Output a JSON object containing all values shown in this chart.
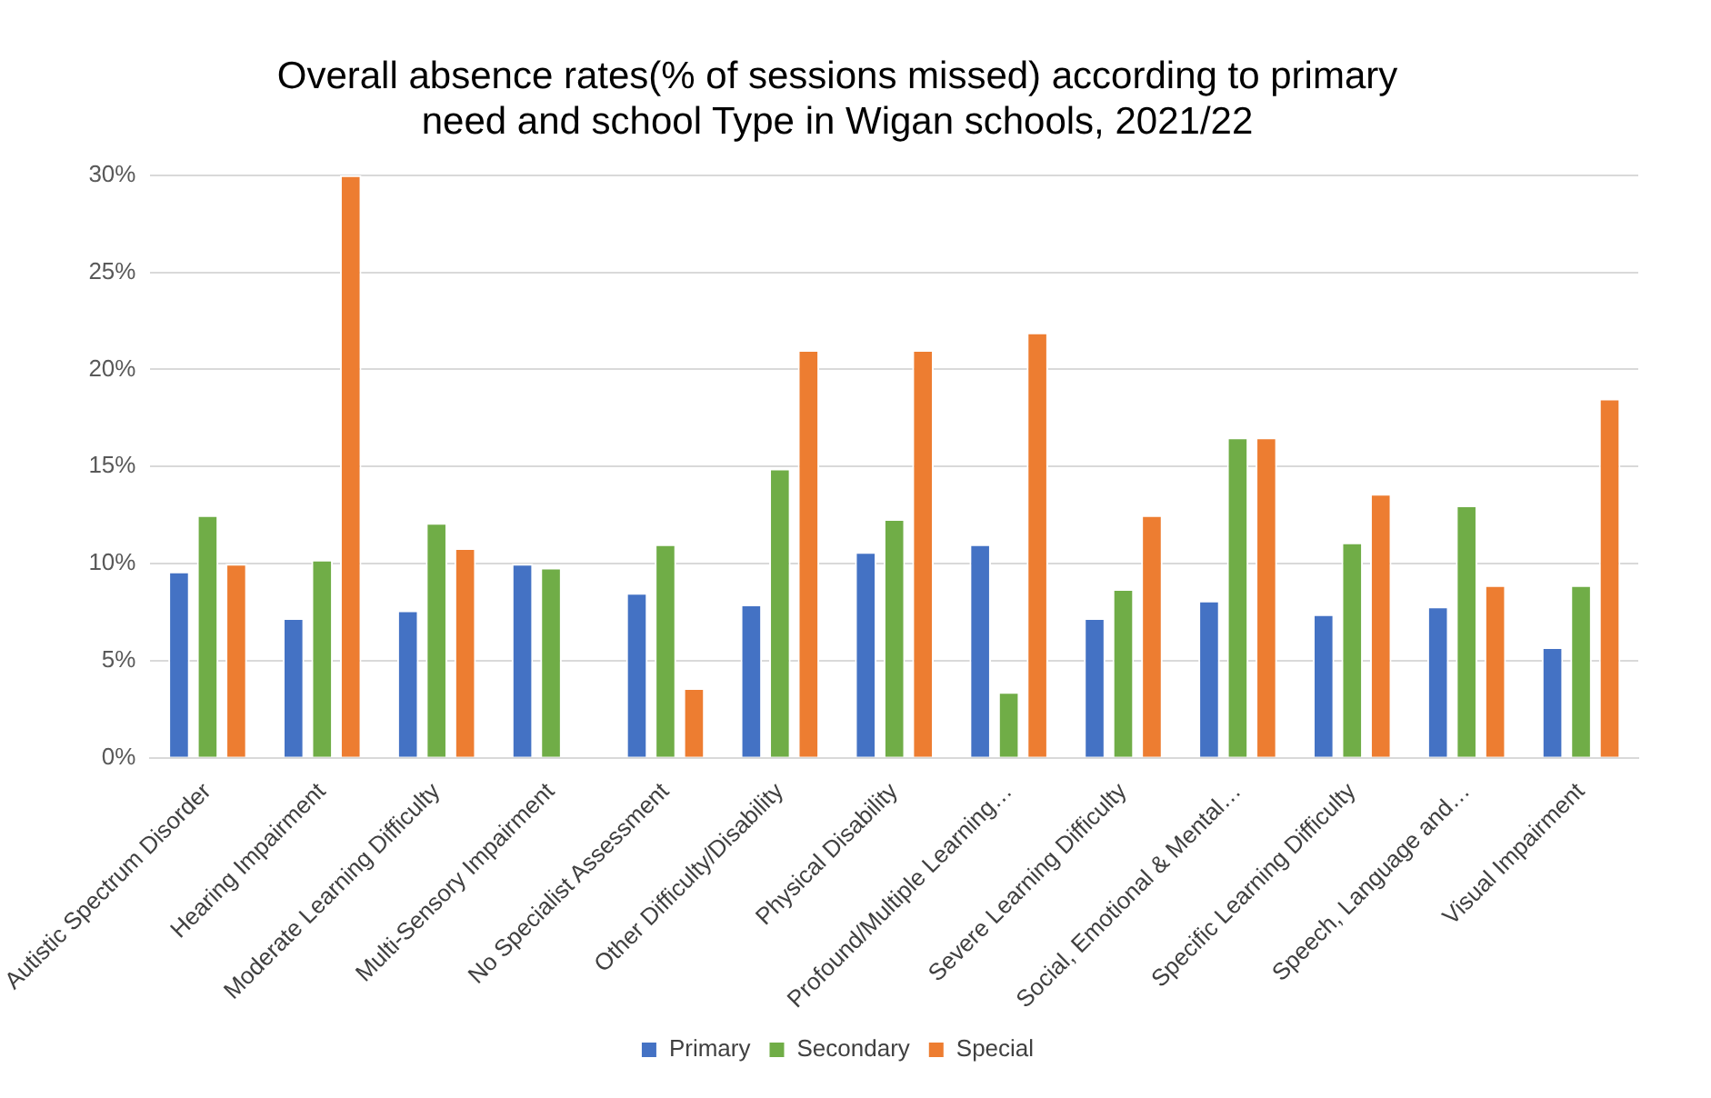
{
  "chart_data": {
    "type": "bar",
    "title": [
      "Overall absence rates(% of sessions missed) according to primary",
      "need and school Type in Wigan schools, 2021/22"
    ],
    "categories": [
      "Autistic Spectrum Disorder",
      "Hearing Impairment",
      "Moderate Learning Difficulty",
      "Multi-Sensory Impairment",
      "No Specialist Assessment",
      "Other Difficulty/Disability",
      "Physical Disability",
      "Profound/Multiple Learning…",
      "Severe Learning Difficulty",
      "Social, Emotional & Mental…",
      "Specific Learning Difficulty",
      "Speech, Language and…",
      "Visual Impairment"
    ],
    "series": [
      {
        "name": "Primary",
        "color": "#4472c4",
        "values": [
          9.6,
          7.2,
          7.6,
          10.0,
          8.5,
          7.9,
          10.6,
          11.0,
          7.2,
          8.1,
          7.4,
          7.8,
          5.7
        ]
      },
      {
        "name": "Secondary",
        "color": "#70ad47",
        "values": [
          12.5,
          10.2,
          12.1,
          9.8,
          11.0,
          14.9,
          12.3,
          3.4,
          8.7,
          16.5,
          11.1,
          13.0,
          8.9
        ]
      },
      {
        "name": "Special",
        "color": "#ed7d31",
        "values": [
          10.0,
          30.0,
          10.8,
          null,
          3.6,
          21.0,
          21.0,
          21.9,
          12.5,
          16.5,
          13.6,
          8.9,
          18.5
        ]
      }
    ],
    "ylim": [
      0,
      30
    ],
    "yticks": [
      {
        "value": 0,
        "label": "0%"
      },
      {
        "value": 5,
        "label": "5%"
      },
      {
        "value": 10,
        "label": "10%"
      },
      {
        "value": 15,
        "label": "15%"
      },
      {
        "value": 20,
        "label": "20%"
      },
      {
        "value": 25,
        "label": "25%"
      },
      {
        "value": 30,
        "label": "30%"
      }
    ],
    "grid": "y",
    "legend": "bottom"
  }
}
